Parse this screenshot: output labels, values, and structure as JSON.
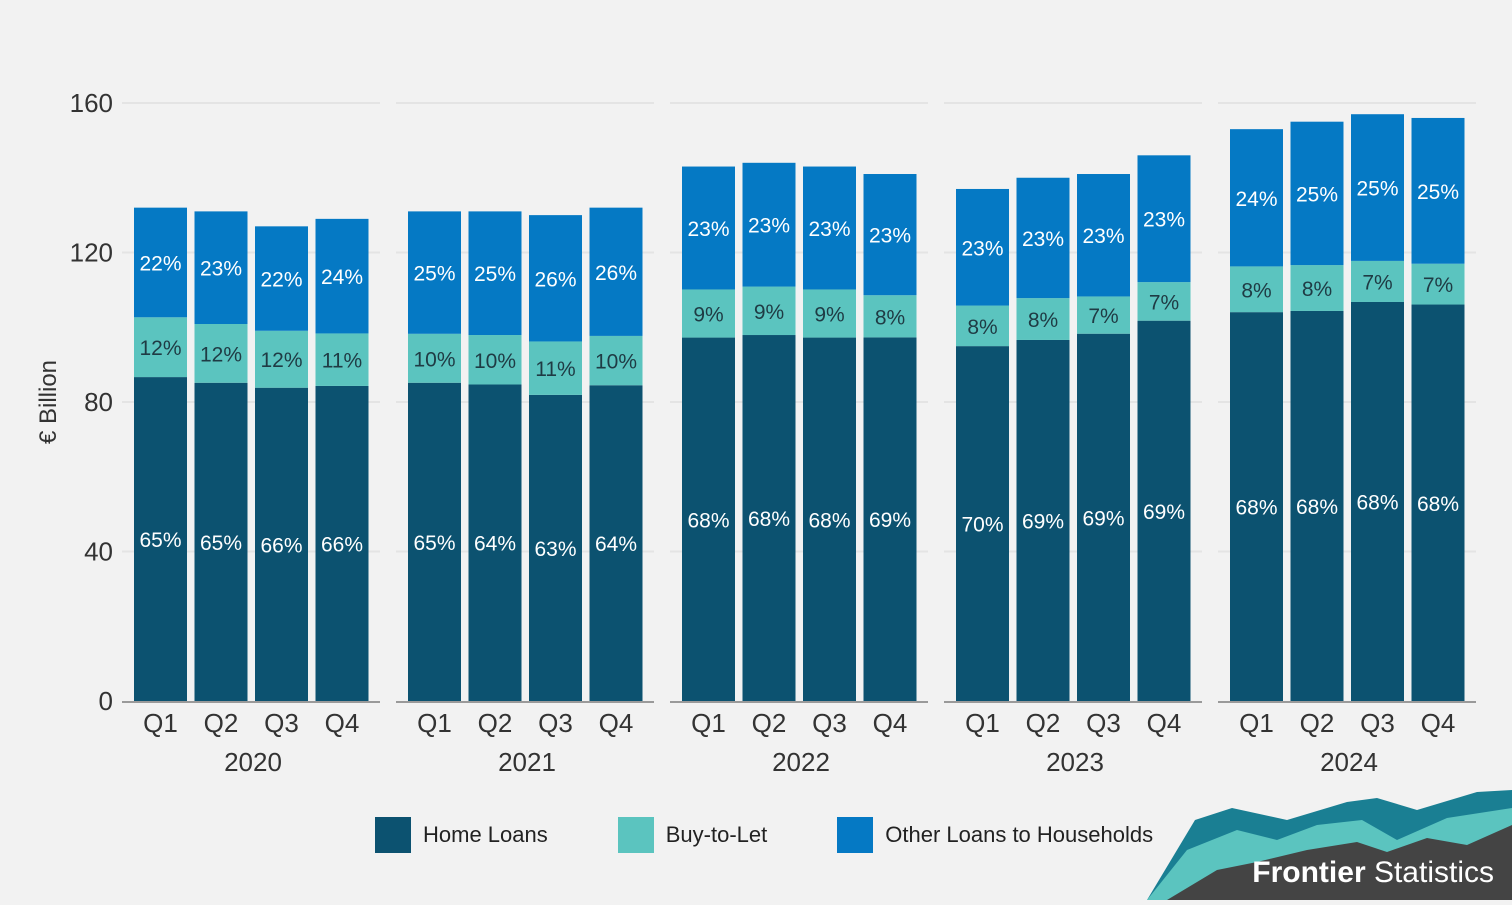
{
  "chart_data": {
    "type": "bar",
    "stacked": true,
    "ylabel": "€ Billion",
    "ylim": [
      0,
      160
    ],
    "yticks": [
      0,
      40,
      80,
      120,
      160
    ],
    "grid": true,
    "groups": [
      {
        "year": "2020",
        "quarters": [
          {
            "q": "Q1",
            "total": 132,
            "shares": [
              "65%",
              "12%",
              "22%"
            ]
          },
          {
            "q": "Q2",
            "total": 131,
            "shares": [
              "65%",
              "12%",
              "23%"
            ]
          },
          {
            "q": "Q3",
            "total": 127,
            "shares": [
              "66%",
              "12%",
              "22%"
            ]
          },
          {
            "q": "Q4",
            "total": 129,
            "shares": [
              "66%",
              "11%",
              "24%"
            ]
          }
        ]
      },
      {
        "year": "2021",
        "quarters": [
          {
            "q": "Q1",
            "total": 131,
            "shares": [
              "65%",
              "10%",
              "25%"
            ]
          },
          {
            "q": "Q2",
            "total": 131,
            "shares": [
              "64%",
              "10%",
              "25%"
            ]
          },
          {
            "q": "Q3",
            "total": 130,
            "shares": [
              "63%",
              "11%",
              "26%"
            ]
          },
          {
            "q": "Q4",
            "total": 132,
            "shares": [
              "64%",
              "10%",
              "26%"
            ]
          }
        ]
      },
      {
        "year": "2022",
        "quarters": [
          {
            "q": "Q1",
            "total": 143,
            "shares": [
              "68%",
              "9%",
              "23%"
            ]
          },
          {
            "q": "Q2",
            "total": 144,
            "shares": [
              "68%",
              "9%",
              "23%"
            ]
          },
          {
            "q": "Q3",
            "total": 143,
            "shares": [
              "68%",
              "9%",
              "23%"
            ]
          },
          {
            "q": "Q4",
            "total": 141,
            "shares": [
              "69%",
              "8%",
              "23%"
            ]
          }
        ]
      },
      {
        "year": "2023",
        "quarters": [
          {
            "q": "Q1",
            "total": 137,
            "shares": [
              "70%",
              "8%",
              "23%"
            ]
          },
          {
            "q": "Q2",
            "total": 140,
            "shares": [
              "69%",
              "8%",
              "23%"
            ]
          },
          {
            "q": "Q3",
            "total": 141,
            "shares": [
              "69%",
              "7%",
              "23%"
            ]
          },
          {
            "q": "Q4",
            "total": 146,
            "shares": [
              "69%",
              "7%",
              "23%"
            ]
          }
        ]
      },
      {
        "year": "2024",
        "quarters": [
          {
            "q": "Q1",
            "total": 153,
            "shares": [
              "68%",
              "8%",
              "24%"
            ]
          },
          {
            "q": "Q2",
            "total": 155,
            "shares": [
              "68%",
              "8%",
              "25%"
            ]
          },
          {
            "q": "Q3",
            "total": 157,
            "shares": [
              "68%",
              "7%",
              "25%"
            ]
          },
          {
            "q": "Q4",
            "total": 156,
            "shares": [
              "68%",
              "7%",
              "25%"
            ]
          }
        ]
      }
    ],
    "series": [
      {
        "name": "Home Loans",
        "color": "#0c5270",
        "label_color": "#ffffff"
      },
      {
        "name": "Buy-to-Let",
        "color": "#5bc4bf",
        "label_color": "#1f3b44"
      },
      {
        "name": "Other Loans to Households",
        "color": "#0579c4",
        "label_color": "#ffffff"
      }
    ]
  },
  "legend": {
    "items": [
      "Home Loans",
      "Buy-to-Let",
      "Other Loans to Households"
    ]
  },
  "brand": {
    "bold": "Frontier",
    "regular": " Statistics"
  },
  "colors": {
    "background": "#f2f2f2",
    "grid": "#e4e4e4",
    "text": "#333333"
  }
}
